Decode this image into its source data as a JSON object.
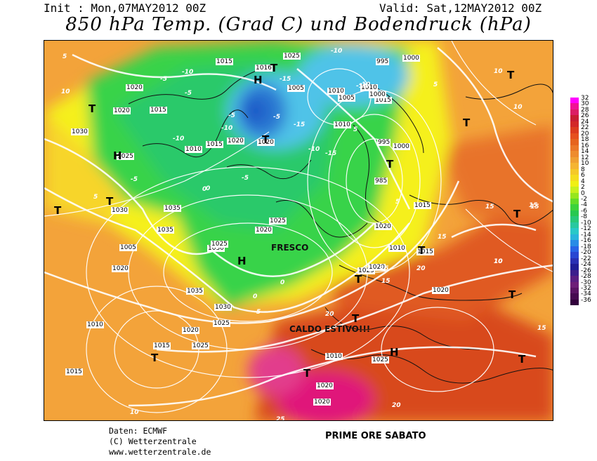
{
  "header": {
    "init": "Init : Mon,07MAY2012 00Z",
    "valid": "Valid: Sat,12MAY2012 00Z",
    "title": "850 hPa Temp. (Grad C) und Bodendruck (hPa)"
  },
  "map": {
    "isobar_labels": [
      "1025",
      "1015",
      "1005",
      "995",
      "1000",
      "1010",
      "1020",
      "1030",
      "1035",
      "1016",
      "985",
      "1025",
      "1020",
      "1015",
      "1010",
      "1005",
      "1030",
      "1035",
      "1020",
      "1025",
      "1030",
      "1015",
      "1020",
      "1025",
      "1015",
      "1000",
      "1010",
      "995",
      "1020",
      "1015",
      "1010",
      "1020",
      "1025",
      "1020",
      "1025",
      "1035",
      "1030",
      "1025",
      "1015",
      "1020",
      "1010",
      "1015",
      "1025",
      "1020",
      "1020",
      "1010",
      "1005",
      "1000",
      "1010",
      "1020",
      "1020",
      "1015"
    ],
    "temp_labels": [
      "-10",
      "-15",
      "-5",
      "-10",
      "-5",
      "-10",
      "-15",
      "-10",
      "-10",
      "-5",
      "-5",
      "-10",
      "-15",
      "-10",
      "5",
      "10",
      "5",
      "0",
      "-5",
      "-5",
      "0",
      "5",
      "10",
      "5",
      "0",
      "0",
      "10",
      "5",
      "5",
      "10",
      "15",
      "15",
      "10",
      "15",
      "20",
      "15",
      "20",
      "25",
      "15",
      "10",
      "15",
      "15",
      "10",
      "20"
    ],
    "highs": [
      "H",
      "H",
      "H",
      "H"
    ],
    "lows": [
      "T",
      "T",
      "T",
      "T",
      "T",
      "T",
      "T",
      "T",
      "T",
      "T",
      "T",
      "T",
      "T",
      "T",
      "T",
      "T"
    ],
    "annotations": {
      "cool": "FRESCO",
      "hot": "CALDO ESTIVO!!!"
    },
    "colors": {
      "very_cold": "#1E5AC8",
      "cold": "#4FC3E8",
      "cool": "#37D34A",
      "neutral": "#F5F01E",
      "warm": "#F3A33A",
      "hot": "#D84A1F",
      "very_hot": "#E0147A"
    }
  },
  "legend": {
    "values": [
      "32",
      "30",
      "28",
      "26",
      "24",
      "22",
      "20",
      "18",
      "16",
      "14",
      "12",
      "10",
      "8",
      "6",
      "4",
      "2",
      "0",
      "-2",
      "-4",
      "-6",
      "-8",
      "-10",
      "-12",
      "-14",
      "-16",
      "-18",
      "-20",
      "-22",
      "-24",
      "-26",
      "-28",
      "-30",
      "-32",
      "-34",
      "-36"
    ],
    "colors": [
      "#FF00FF",
      "#F01296",
      "#DC1E64",
      "#C81E32",
      "#D22828",
      "#DC3C1E",
      "#E6501E",
      "#E6641E",
      "#EB7828",
      "#EE8C2D",
      "#F0A032",
      "#F5B432",
      "#F5C828",
      "#F5DC1E",
      "#F0F014",
      "#C8F01E",
      "#96E61E",
      "#64DC28",
      "#3CD23C",
      "#28C850",
      "#28C878",
      "#28C8A0",
      "#28C8C8",
      "#28B4DC",
      "#288CE6",
      "#2864E6",
      "#2846D2",
      "#2830B4",
      "#1E1E96",
      "#3C1E8C",
      "#5A1E82",
      "#6E1E78",
      "#5A1464",
      "#460A50",
      "#32003C"
    ]
  },
  "credits": {
    "line1": "Daten: ECMWF",
    "line2": "(C) Wetterzentrale",
    "line3": "www.wetterzentrale.de"
  },
  "footer_note": "PRIME ORE SABATO"
}
